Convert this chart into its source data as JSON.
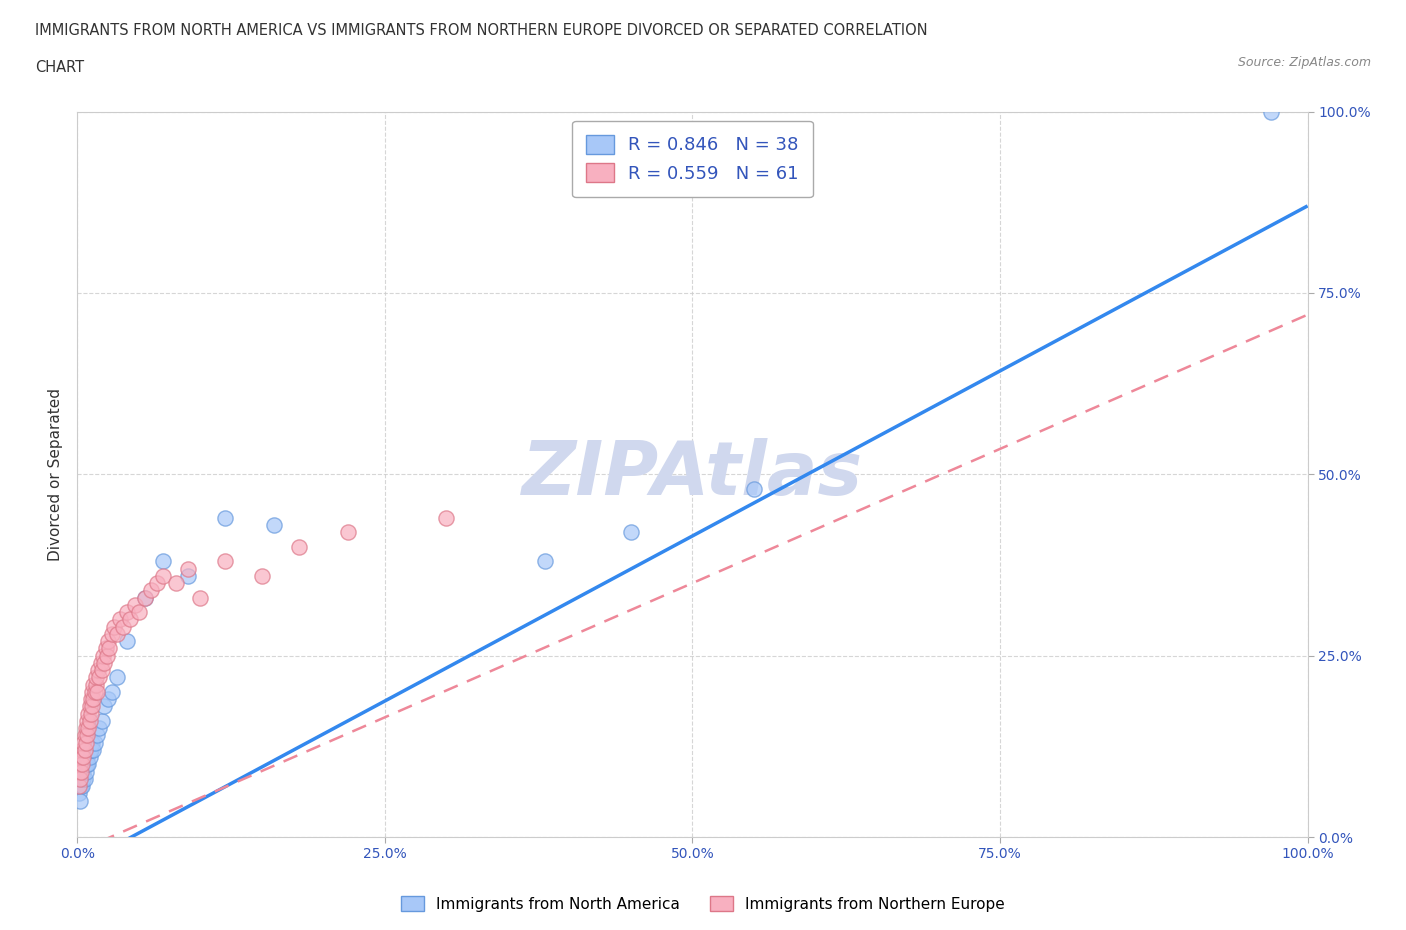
{
  "title_line1": "IMMIGRANTS FROM NORTH AMERICA VS IMMIGRANTS FROM NORTHERN EUROPE DIVORCED OR SEPARATED CORRELATION",
  "title_line2": "CHART",
  "source": "Source: ZipAtlas.com",
  "ylabel": "Divorced or Separated",
  "xticklabels": [
    "0.0%",
    "25.0%",
    "50.0%",
    "75.0%",
    "100.0%"
  ],
  "yticklabels": [
    "0.0%",
    "25.0%",
    "50.0%",
    "75.0%",
    "100.0%"
  ],
  "xlim": [
    0,
    1
  ],
  "ylim": [
    0,
    1
  ],
  "watermark": "ZIPAtlas",
  "series_blue": {
    "label": "Immigrants from North America",
    "R": 0.846,
    "N": 38,
    "color": "#a8c8f8",
    "color_dark": "#6699dd",
    "x": [
      0.001,
      0.002,
      0.003,
      0.003,
      0.004,
      0.005,
      0.005,
      0.006,
      0.006,
      0.007,
      0.007,
      0.008,
      0.008,
      0.009,
      0.01,
      0.01,
      0.011,
      0.012,
      0.013,
      0.014,
      0.016,
      0.018,
      0.02,
      0.022,
      0.025,
      0.028,
      0.032,
      0.04,
      0.055,
      0.07,
      0.09,
      0.12,
      0.16,
      0.38,
      0.45,
      0.55,
      0.97,
      0.002
    ],
    "y": [
      0.06,
      0.07,
      0.07,
      0.08,
      0.07,
      0.08,
      0.09,
      0.08,
      0.1,
      0.09,
      0.1,
      0.1,
      0.11,
      0.1,
      0.11,
      0.12,
      0.12,
      0.13,
      0.12,
      0.13,
      0.14,
      0.15,
      0.16,
      0.18,
      0.19,
      0.2,
      0.22,
      0.27,
      0.33,
      0.38,
      0.36,
      0.44,
      0.43,
      0.38,
      0.42,
      0.48,
      1.0,
      0.05
    ]
  },
  "series_pink": {
    "label": "Immigrants from Northern Europe",
    "R": 0.559,
    "N": 61,
    "color": "#f8b0c0",
    "color_dark": "#dd7788",
    "x": [
      0.001,
      0.001,
      0.002,
      0.002,
      0.003,
      0.003,
      0.004,
      0.004,
      0.005,
      0.005,
      0.006,
      0.006,
      0.007,
      0.007,
      0.008,
      0.008,
      0.009,
      0.009,
      0.01,
      0.01,
      0.011,
      0.011,
      0.012,
      0.012,
      0.013,
      0.013,
      0.014,
      0.015,
      0.015,
      0.016,
      0.017,
      0.018,
      0.019,
      0.02,
      0.021,
      0.022,
      0.023,
      0.024,
      0.025,
      0.026,
      0.028,
      0.03,
      0.032,
      0.035,
      0.037,
      0.04,
      0.043,
      0.047,
      0.05,
      0.055,
      0.06,
      0.065,
      0.07,
      0.08,
      0.09,
      0.1,
      0.12,
      0.15,
      0.18,
      0.22,
      0.3
    ],
    "y": [
      0.07,
      0.09,
      0.08,
      0.1,
      0.09,
      0.11,
      0.1,
      0.12,
      0.11,
      0.13,
      0.12,
      0.14,
      0.13,
      0.15,
      0.14,
      0.16,
      0.15,
      0.17,
      0.16,
      0.18,
      0.17,
      0.19,
      0.18,
      0.2,
      0.19,
      0.21,
      0.2,
      0.21,
      0.22,
      0.2,
      0.23,
      0.22,
      0.24,
      0.23,
      0.25,
      0.24,
      0.26,
      0.25,
      0.27,
      0.26,
      0.28,
      0.29,
      0.28,
      0.3,
      0.29,
      0.31,
      0.3,
      0.32,
      0.31,
      0.33,
      0.34,
      0.35,
      0.36,
      0.35,
      0.37,
      0.33,
      0.38,
      0.36,
      0.4,
      0.42,
      0.44
    ]
  },
  "blue_line_color": "#3388ee",
  "pink_line_color": "#ee8899",
  "grid_color": "#cccccc",
  "bg_color": "#ffffff",
  "title_color": "#333333",
  "watermark_color": "#d0d8ee",
  "legend_R_N_color": "#3355bb",
  "blue_line_x": [
    0.0,
    1.0
  ],
  "blue_line_y": [
    -0.04,
    0.87
  ],
  "pink_line_x": [
    0.0,
    1.0
  ],
  "pink_line_y": [
    -0.02,
    0.72
  ]
}
